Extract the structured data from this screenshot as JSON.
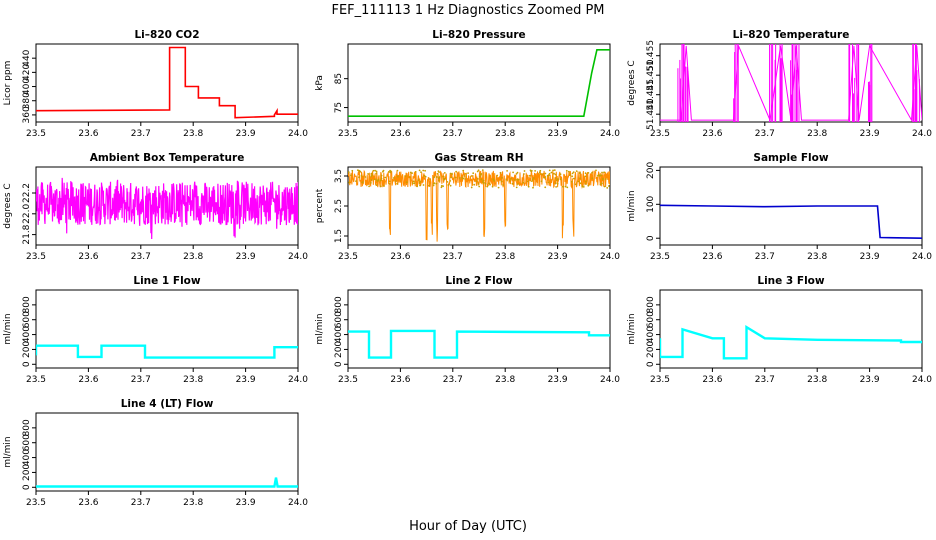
{
  "figure": {
    "title": "FEF_111113  1 Hz Diagnostics Zoomed PM",
    "xlabel": "Hour of Day (UTC)"
  },
  "chart_data": [
    {
      "type": "line",
      "title": "Li–820 CO2",
      "ylabel": "Licor ppm",
      "color": "#ff0000",
      "xlim": [
        23.5,
        24.0
      ],
      "ylim": [
        350,
        460
      ],
      "xticks": [
        "23.5",
        "23.6",
        "23.7",
        "23.8",
        "23.9",
        "24.0"
      ],
      "yticks": [
        "360",
        "380",
        "400",
        "420",
        "440"
      ],
      "series": [
        {
          "x": [
            23.5,
            23.755,
            23.755,
            23.785,
            23.785,
            23.81,
            23.81,
            23.85,
            23.85,
            23.88,
            23.88,
            23.955,
            23.955,
            23.96,
            23.96,
            24.0
          ],
          "y": [
            366,
            367,
            455,
            455,
            400,
            400,
            384,
            384,
            373,
            373,
            356,
            358,
            360,
            366,
            361,
            361
          ]
        }
      ]
    },
    {
      "type": "line",
      "title": "Li–820 Pressure",
      "ylabel": "kPa",
      "color": "#00c000",
      "xlim": [
        23.5,
        24.0
      ],
      "ylim": [
        70,
        97
      ],
      "xticks": [
        "23.5",
        "23.6",
        "23.7",
        "23.8",
        "23.9",
        "24.0"
      ],
      "yticks": [
        "75",
        "85"
      ],
      "series": [
        {
          "x": [
            23.5,
            23.92,
            23.95,
            23.965,
            23.975,
            24.0
          ],
          "y": [
            72,
            72,
            72,
            87,
            95,
            95
          ]
        }
      ]
    },
    {
      "type": "line",
      "title": "Li–820 Temperature",
      "ylabel": "degrees C",
      "color": "#ff00ff",
      "xlim": [
        23.5,
        24.0
      ],
      "ylim": [
        51.438,
        51.458
      ],
      "xticks": [
        "23.5",
        "23.6",
        "23.7",
        "23.8",
        "23.9",
        "24.0"
      ],
      "yticks": [
        "51.440",
        "51.445",
        "51.450",
        "51.455"
      ],
      "series": [
        {
          "x": [
            23.5,
            23.54,
            23.55,
            23.56,
            23.64,
            23.65,
            23.71,
            23.73,
            23.75,
            23.76,
            23.77,
            23.86,
            23.87,
            23.88,
            23.9,
            23.98,
            23.99,
            24.0
          ],
          "y": [
            51.4385,
            51.4385,
            51.4575,
            51.4385,
            51.4385,
            51.4575,
            51.4385,
            51.4575,
            51.4385,
            51.4575,
            51.4385,
            51.4385,
            51.4575,
            51.4385,
            51.4575,
            51.4385,
            51.4575,
            51.4385
          ]
        }
      ]
    },
    {
      "type": "line",
      "title": "Ambient Box Temperature",
      "ylabel": "degrees C",
      "color": "#ff00ff",
      "xlim": [
        23.5,
        24.0
      ],
      "ylim": [
        21.7,
        22.45
      ],
      "xticks": [
        "23.5",
        "23.6",
        "23.7",
        "23.8",
        "23.9",
        "24.0"
      ],
      "yticks": [
        "21.8",
        "22.0",
        "22.2"
      ],
      "series": [
        {
          "x": [
            23.5,
            24.0
          ],
          "y": [
            22.1,
            22.1
          ]
        }
      ]
    },
    {
      "type": "line",
      "title": "Gas Stream RH",
      "ylabel": "percent",
      "color": "#ff8c00",
      "xlim": [
        23.5,
        24.0
      ],
      "ylim": [
        1.2,
        3.8
      ],
      "xticks": [
        "23.5",
        "23.6",
        "23.7",
        "23.8",
        "23.9",
        "24.0"
      ],
      "yticks": [
        "1.5",
        "2.5",
        "3.5"
      ],
      "series": [
        {
          "x": [
            23.5,
            24.0
          ],
          "y": [
            3.4,
            3.4
          ]
        }
      ]
    },
    {
      "type": "line",
      "title": "Sample Flow",
      "ylabel": "ml/min",
      "color": "#0000cd",
      "xlim": [
        23.5,
        24.0
      ],
      "ylim": [
        -20,
        210
      ],
      "xticks": [
        "23.5",
        "23.6",
        "23.7",
        "23.8",
        "23.9",
        "24.0"
      ],
      "yticks": [
        "0",
        "100",
        "200"
      ],
      "series": [
        {
          "x": [
            23.5,
            23.6,
            23.7,
            23.8,
            23.915,
            23.92,
            24.0
          ],
          "y": [
            97,
            95,
            93,
            95,
            95,
            2,
            0
          ]
        }
      ]
    },
    {
      "type": "line",
      "title": "Line 1 Flow",
      "ylabel": "ml/min",
      "color": "#00ffff",
      "xlim": [
        23.5,
        24.0
      ],
      "ylim": [
        -50,
        1000
      ],
      "xticks": [
        "23.5",
        "23.6",
        "23.7",
        "23.8",
        "23.9",
        "24.0"
      ],
      "yticks": [
        "0",
        "200",
        "400",
        "600",
        "800"
      ],
      "series": [
        {
          "x": [
            23.5,
            23.5,
            23.58,
            23.58,
            23.625,
            23.625,
            23.708,
            23.708,
            23.955,
            23.955,
            24.0
          ],
          "y": [
            120,
            250,
            250,
            100,
            100,
            250,
            250,
            90,
            90,
            230,
            230
          ]
        }
      ]
    },
    {
      "type": "line",
      "title": "Line 2 Flow",
      "ylabel": "ml/min",
      "color": "#00ffff",
      "xlim": [
        23.5,
        24.0
      ],
      "ylim": [
        -50,
        1000
      ],
      "xticks": [
        "23.5",
        "23.6",
        "23.7",
        "23.8",
        "23.9",
        "24.0"
      ],
      "yticks": [
        "0",
        "200",
        "400",
        "600",
        "800"
      ],
      "series": [
        {
          "x": [
            23.5,
            23.54,
            23.54,
            23.582,
            23.582,
            23.665,
            23.665,
            23.708,
            23.708,
            23.96,
            23.96,
            24.0
          ],
          "y": [
            440,
            440,
            90,
            90,
            450,
            450,
            90,
            90,
            440,
            430,
            390,
            390
          ]
        }
      ]
    },
    {
      "type": "line",
      "title": "Line 3 Flow",
      "ylabel": "ml/min",
      "color": "#00ffff",
      "xlim": [
        23.5,
        24.0
      ],
      "ylim": [
        -50,
        1000
      ],
      "xticks": [
        "23.5",
        "23.6",
        "23.7",
        "23.8",
        "23.9",
        "24.0"
      ],
      "yticks": [
        "0",
        "200",
        "400",
        "600",
        "800"
      ],
      "series": [
        {
          "x": [
            23.5,
            23.5,
            23.543,
            23.543,
            23.6,
            23.622,
            23.622,
            23.665,
            23.665,
            23.7,
            23.8,
            23.96,
            23.96,
            24.0
          ],
          "y": [
            350,
            100,
            100,
            470,
            350,
            350,
            80,
            80,
            500,
            350,
            330,
            320,
            300,
            300
          ]
        }
      ]
    },
    {
      "type": "line",
      "title": "Line 4 (LT) Flow",
      "ylabel": "ml/min",
      "color": "#00ffff",
      "xlim": [
        23.5,
        24.0
      ],
      "ylim": [
        -50,
        1000
      ],
      "xticks": [
        "23.5",
        "23.6",
        "23.7",
        "23.8",
        "23.9",
        "24.0"
      ],
      "yticks": [
        "0",
        "200",
        "400",
        "600",
        "800"
      ],
      "series": [
        {
          "x": [
            23.5,
            23.955,
            23.958,
            23.961,
            24.0
          ],
          "y": [
            10,
            10,
            130,
            10,
            10
          ]
        }
      ]
    }
  ]
}
